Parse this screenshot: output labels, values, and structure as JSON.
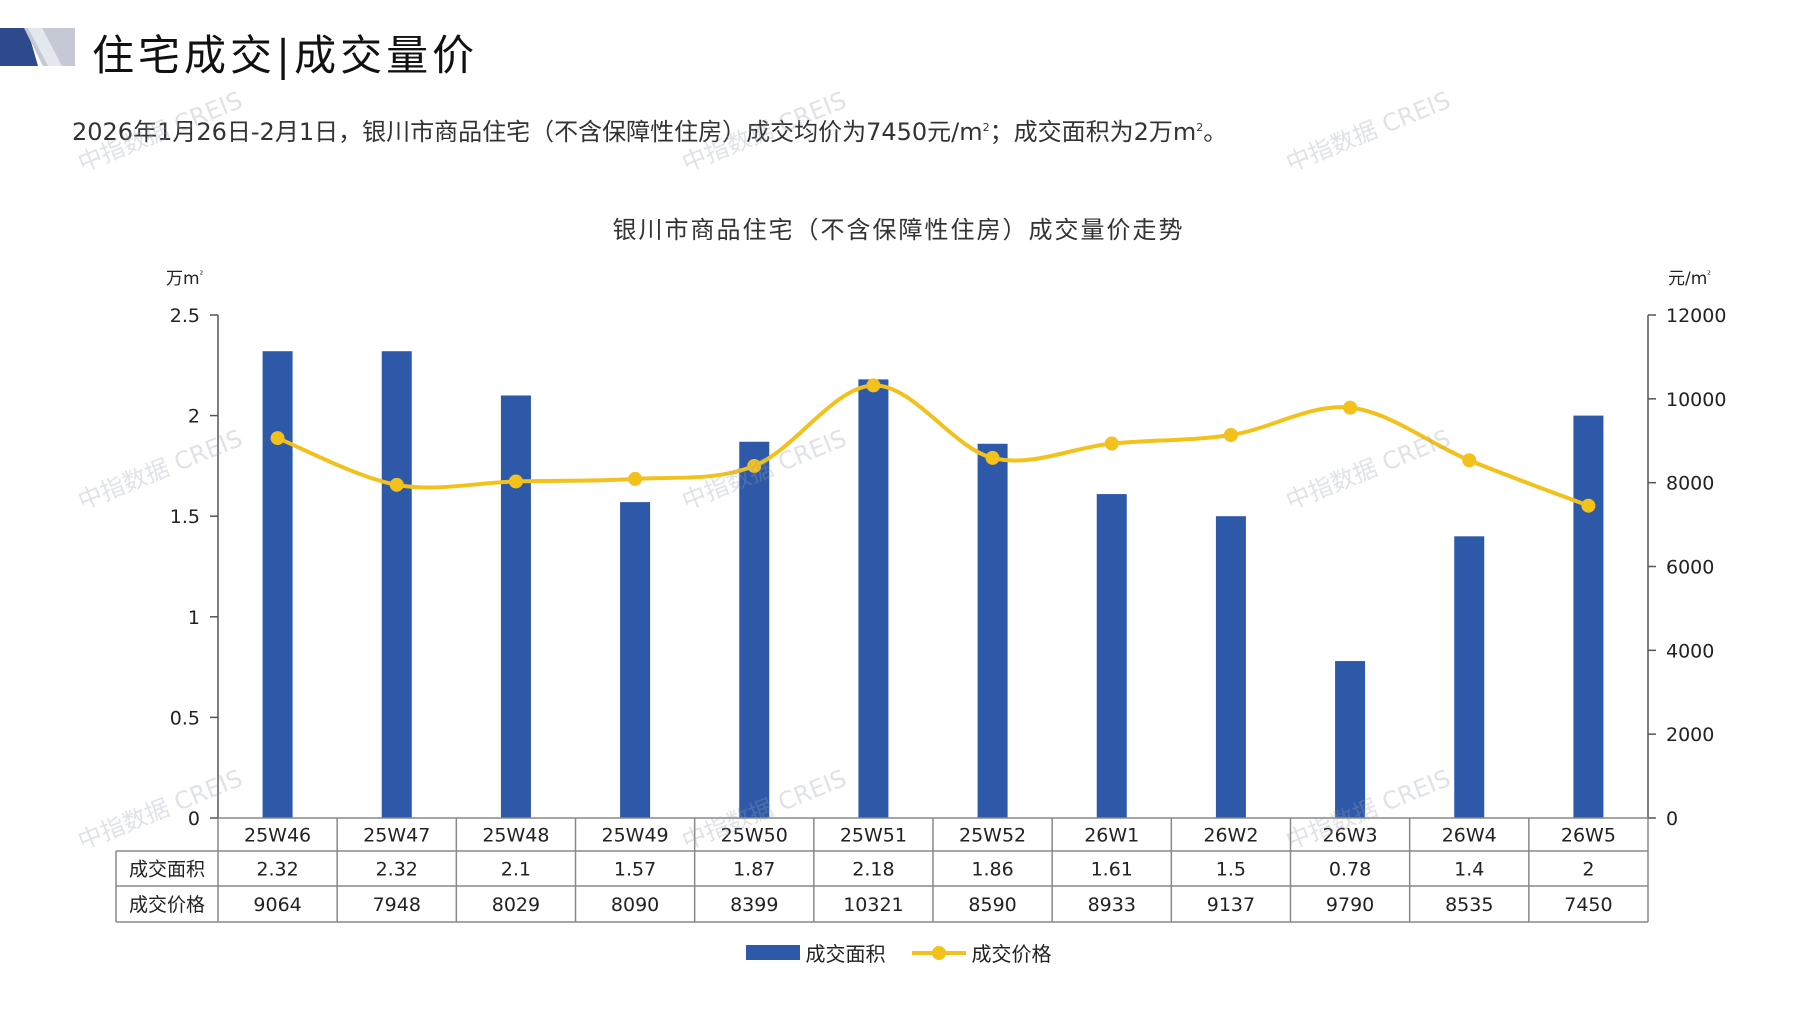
{
  "header": {
    "title": "住宅成交|成交量价"
  },
  "summary": {
    "text": "2026年1月26日-2月1日，银川市商品住宅（不含保障性住房）成交均价为7450元/m",
    "text2": "；成交面积为2万m",
    "text3": "。"
  },
  "watermark": "中指数据 CREIS",
  "colors": {
    "bar": "#2e59a8",
    "line": "#f2c11b",
    "axis": "#555555",
    "table_border": "#888888",
    "logo_dark": "#2e4a8c",
    "logo_light": "#c4c9d4"
  },
  "chart_data": {
    "type": "bar",
    "title": "银川市商品住宅（不含保障性住房）成交量价走势",
    "categories": [
      "25W46",
      "25W47",
      "25W48",
      "25W49",
      "25W50",
      "25W51",
      "25W52",
      "26W1",
      "26W2",
      "26W3",
      "26W4",
      "26W5"
    ],
    "series": [
      {
        "name": "成交面积",
        "type": "bar",
        "axis": "left",
        "values": [
          2.32,
          2.32,
          2.1,
          1.57,
          1.87,
          2.18,
          1.86,
          1.61,
          1.5,
          0.78,
          1.4,
          2
        ],
        "labels": [
          "2.32",
          "2.32",
          "2.1",
          "1.57",
          "1.87",
          "2.18",
          "1.86",
          "1.61",
          "1.5",
          "0.78",
          "1.4",
          "2"
        ]
      },
      {
        "name": "成交价格",
        "type": "line",
        "axis": "right",
        "values": [
          9064,
          7948,
          8029,
          8090,
          8399,
          10321,
          8590,
          8933,
          9137,
          9790,
          8535,
          7450
        ],
        "labels": [
          "9064",
          "7948",
          "8029",
          "8090",
          "8399",
          "10321",
          "8590",
          "8933",
          "9137",
          "9790",
          "8535",
          "7450"
        ]
      }
    ],
    "y_left": {
      "unit": "万m",
      "unit_sup": "²",
      "ylim": [
        0,
        2.5
      ],
      "ticks": [
        0,
        0.5,
        1,
        1.5,
        2,
        2.5
      ],
      "tick_labels": [
        "0",
        "0.5",
        "1",
        "1.5",
        "2",
        "2.5"
      ]
    },
    "y_right": {
      "unit": "元/m",
      "unit_sup": "²",
      "ylim": [
        0,
        12000
      ],
      "ticks": [
        0,
        2000,
        4000,
        6000,
        8000,
        10000,
        12000
      ],
      "tick_labels": [
        "0",
        "2000",
        "4000",
        "6000",
        "8000",
        "10000",
        "12000"
      ]
    },
    "legend_position": "bottom"
  }
}
